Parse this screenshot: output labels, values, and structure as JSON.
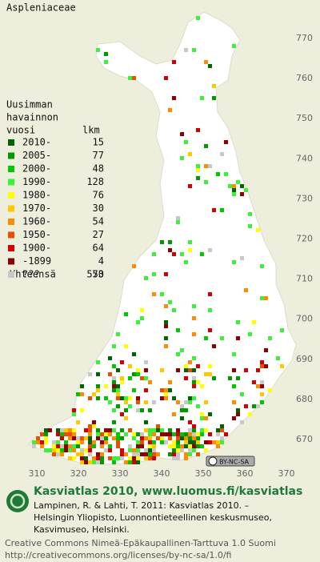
{
  "title": "Aspleniaceae",
  "legend": {
    "heading": [
      "Uusimman",
      "havainnon",
      "vuosi"
    ],
    "count_heading": "lkm",
    "rows": [
      {
        "label": "2010-",
        "count": 15,
        "color": "#006400"
      },
      {
        "label": "2005-",
        "count": 77,
        "color": "#009a00"
      },
      {
        "label": "2000-",
        "count": 48,
        "color": "#00c800"
      },
      {
        "label": "1990-",
        "count": 128,
        "color": "#3cf03c"
      },
      {
        "label": "1980-",
        "count": 76,
        "color": "#ffff00"
      },
      {
        "label": "1970-",
        "count": 30,
        "color": "#ffc800"
      },
      {
        "label": "1960-",
        "count": 54,
        "color": "#ff8c00"
      },
      {
        "label": "1950-",
        "count": 27,
        "color": "#e65000"
      },
      {
        "label": "1900-",
        "count": 64,
        "color": "#d20000"
      },
      {
        "label": "-1899",
        "count": 4,
        "color": "#8b0000"
      },
      {
        "label": "???",
        "count": 50,
        "color": "#c8c8c8"
      }
    ],
    "total": {
      "label": "Yhteensä",
      "count": 573
    }
  },
  "map": {
    "yticks": [
      770,
      760,
      750,
      740,
      730,
      720,
      710,
      700,
      690,
      680,
      670
    ],
    "xticks": [
      310,
      320,
      330,
      340,
      350,
      360,
      370
    ]
  },
  "license_badge": "BY-NC-SA",
  "footer": {
    "brand": "Kasviatlas 2010, www.luomus.fi/kasviatlas",
    "citation": [
      "Lampinen, R. & Lahti, T. 2011: Kasviatlas 2010. –",
      "Helsingin Yliopisto, Luonnontieteellinen keskusmuseo,",
      "Kasvimuseo, Helsinki."
    ],
    "license": [
      "Creative Commons Nimeä-Epäkaupallinen-Tarttuva 1.0 Suomi",
      "http://creativecommons.org/licenses/by-nc-sa/1.0/fi"
    ]
  }
}
